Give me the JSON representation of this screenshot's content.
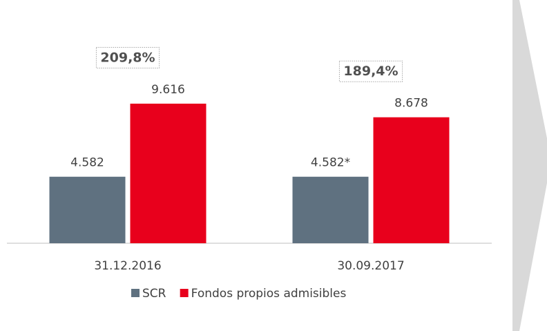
{
  "chart_data": {
    "type": "bar",
    "categories": [
      "31.12.2016",
      "30.09.2017"
    ],
    "series": [
      {
        "name": "SCR",
        "color": "#5f7180",
        "values": [
          4582,
          4582
        ],
        "value_labels": [
          "4.582",
          "4.582*"
        ]
      },
      {
        "name": "Fondos propios admisibles",
        "color": "#e8001c",
        "values": [
          9616,
          8678
        ],
        "value_labels": [
          "9.616",
          "8.678"
        ]
      }
    ],
    "annotations": [
      "209,8%",
      "189,4%"
    ],
    "legend": "bottom"
  }
}
